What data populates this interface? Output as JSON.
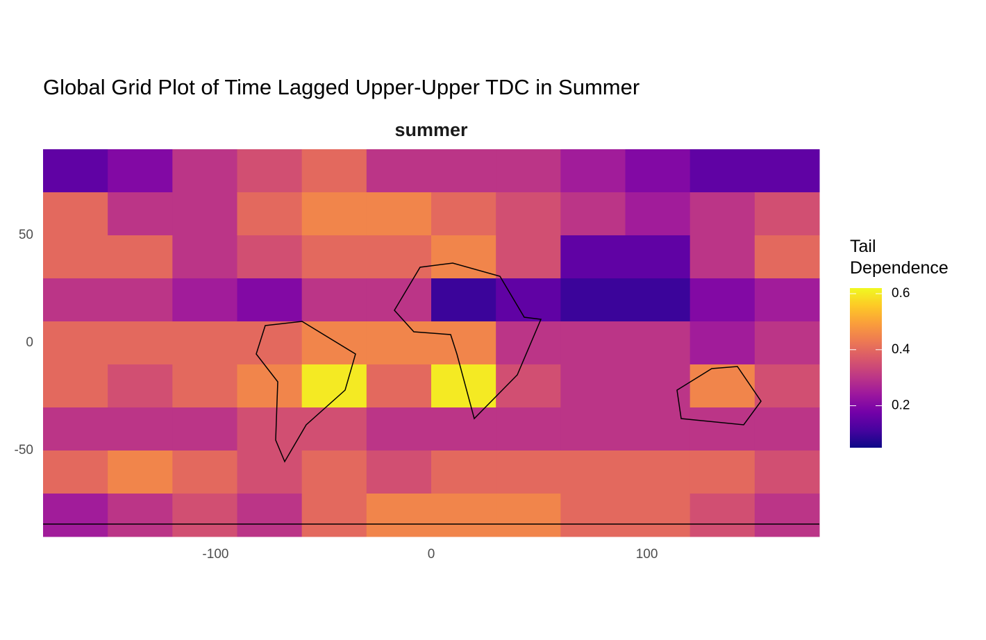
{
  "chart_data": {
    "type": "heatmap",
    "title": "Global Grid Plot of Time Lagged Upper-Upper TDC in Summer",
    "subtitle": "summer",
    "colorbar_title": "Tail Dependence",
    "colormap": "plasma",
    "x": [
      -165,
      -135,
      -105,
      -75,
      -45,
      -15,
      15,
      45,
      75,
      105,
      135,
      165
    ],
    "y": [
      80,
      60,
      40,
      20,
      0,
      -20,
      -40,
      -60,
      -80
    ],
    "z": [
      [
        0.15,
        0.2,
        0.3,
        0.35,
        0.4,
        0.3,
        0.3,
        0.3,
        0.25,
        0.2,
        0.15,
        0.15
      ],
      [
        0.4,
        0.3,
        0.3,
        0.4,
        0.45,
        0.45,
        0.4,
        0.35,
        0.3,
        0.25,
        0.3,
        0.35
      ],
      [
        0.4,
        0.4,
        0.3,
        0.35,
        0.4,
        0.4,
        0.45,
        0.35,
        0.15,
        0.15,
        0.3,
        0.4
      ],
      [
        0.3,
        0.3,
        0.25,
        0.2,
        0.3,
        0.3,
        0.1,
        0.15,
        0.1,
        0.1,
        0.2,
        0.25
      ],
      [
        0.4,
        0.4,
        0.4,
        0.4,
        0.45,
        0.45,
        0.45,
        0.3,
        0.3,
        0.3,
        0.25,
        0.3
      ],
      [
        0.4,
        0.35,
        0.4,
        0.45,
        0.6,
        0.4,
        0.6,
        0.35,
        0.3,
        0.3,
        0.45,
        0.35
      ],
      [
        0.3,
        0.3,
        0.3,
        0.35,
        0.35,
        0.3,
        0.3,
        0.3,
        0.3,
        0.3,
        0.3,
        0.3
      ],
      [
        0.4,
        0.45,
        0.4,
        0.35,
        0.4,
        0.35,
        0.4,
        0.4,
        0.4,
        0.4,
        0.4,
        0.35
      ],
      [
        0.25,
        0.3,
        0.35,
        0.3,
        0.4,
        0.45,
        0.45,
        0.45,
        0.4,
        0.4,
        0.35,
        0.3
      ]
    ],
    "xlim": [
      -180,
      180
    ],
    "ylim": [
      -90,
      90
    ],
    "xticks": [
      -100,
      0,
      100
    ],
    "yticks": [
      -50,
      0,
      50
    ],
    "zlim": [
      0.05,
      0.62
    ],
    "zticks": [
      0.2,
      0.4,
      0.6
    ]
  }
}
